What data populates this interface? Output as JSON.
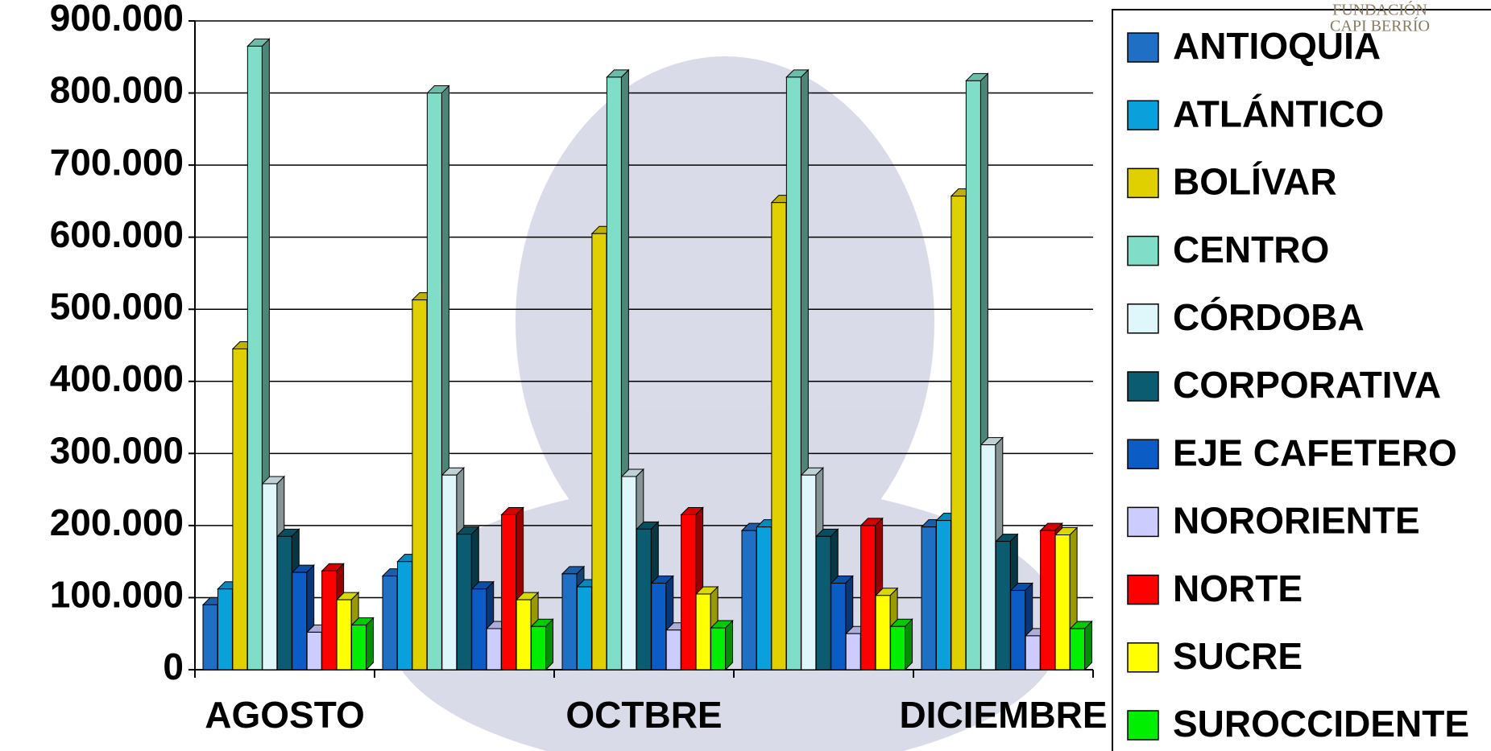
{
  "chart_data": {
    "type": "bar3d",
    "categories": [
      "AGOSTO",
      null,
      "OCTBRE",
      null,
      "DICIEMBRE"
    ],
    "series": [
      {
        "name": "ANTIOQUIA",
        "color": "#1f6fc5",
        "values": [
          90000,
          130000,
          133000,
          193000,
          198000
        ]
      },
      {
        "name": "ATLÁNTICO",
        "color": "#0aa0dc",
        "values": [
          112000,
          150000,
          115000,
          198000,
          207000
        ]
      },
      {
        "name": "BOLÍVAR",
        "color": "#e0d000",
        "values": [
          445000,
          513000,
          605000,
          648000,
          657000
        ]
      },
      {
        "name": "CENTRO",
        "color": "#80ddc8",
        "values": [
          865000,
          800000,
          822000,
          822000,
          817000
        ]
      },
      {
        "name": "CÓRDOBA",
        "color": "#dff6fa",
        "values": [
          258000,
          270000,
          268000,
          270000,
          312000
        ]
      },
      {
        "name": "CORPORATIVA",
        "color": "#0b5c70",
        "values": [
          185000,
          188000,
          195000,
          185000,
          178000
        ]
      },
      {
        "name": "EJE CAFETERO",
        "color": "#0b5cc4",
        "values": [
          135000,
          112000,
          120000,
          120000,
          110000
        ]
      },
      {
        "name": "NORORIENTE",
        "color": "#ccccff",
        "values": [
          52000,
          57000,
          55000,
          50000,
          47000
        ]
      },
      {
        "name": "NORTE",
        "color": "#ff0000",
        "values": [
          137000,
          215000,
          215000,
          200000,
          193000
        ]
      },
      {
        "name": "SUCRE",
        "color": "#ffff00",
        "values": [
          97000,
          97000,
          105000,
          103000,
          187000
        ]
      },
      {
        "name": "SUROCCIDENTE",
        "color": "#00ee00",
        "values": [
          62000,
          60000,
          58000,
          60000,
          57000
        ]
      }
    ],
    "ylim": [
      0,
      900000
    ],
    "yticks": [
      0,
      {
        "value": 100000,
        "label": "100.000"
      },
      {
        "value": 200000,
        "label": "200.000"
      },
      {
        "value": 300000,
        "label": "300.000"
      },
      {
        "value": 400000,
        "label": "400.000"
      },
      {
        "value": 500000,
        "label": "500.000"
      },
      {
        "value": 600000,
        "label": "600.000"
      },
      {
        "value": 700000,
        "label": "700.000"
      },
      {
        "value": 800000,
        "label": "800.000"
      },
      {
        "value": 900000,
        "label": "900.000"
      }
    ],
    "grid": true,
    "legend": "right"
  },
  "logo": [
    "FUNDACIÓN",
    "CAPI BERRÍO"
  ]
}
